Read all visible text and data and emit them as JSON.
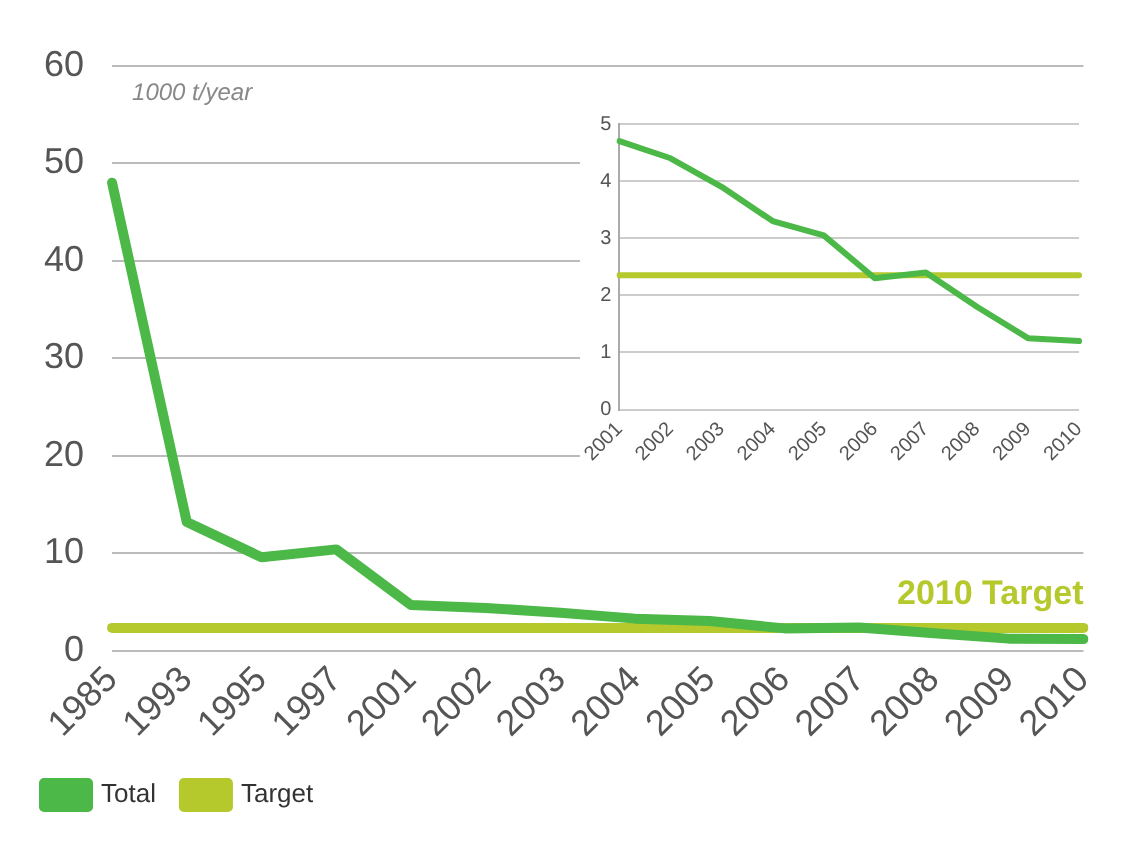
{
  "chart_data": [
    {
      "type": "line",
      "ylabel": "1000 t/year",
      "categories": [
        "1985",
        "1993",
        "1995",
        "1997",
        "2001",
        "2002",
        "2003",
        "2004",
        "2005",
        "2006",
        "2007",
        "2008",
        "2009",
        "2010"
      ],
      "series": [
        {
          "name": "Total",
          "color": "#4cb848",
          "values": [
            48,
            13.2,
            9.6,
            10.4,
            4.7,
            4.4,
            3.9,
            3.3,
            3.05,
            2.3,
            2.4,
            1.8,
            1.25,
            1.2
          ]
        },
        {
          "name": "Target",
          "color": "#b5c92d",
          "values": [
            2.35,
            2.35,
            2.35,
            2.35,
            2.35,
            2.35,
            2.35,
            2.35,
            2.35,
            2.35,
            2.35,
            2.35,
            2.35,
            2.35
          ]
        }
      ],
      "ylim": [
        0,
        60
      ],
      "yticks": [
        0,
        10,
        20,
        30,
        40,
        50,
        60
      ],
      "grid": "y",
      "legend": "bottom left",
      "marker": "none",
      "annotations": [
        {
          "text": "2010 Target",
          "x": "2010",
          "y": 2.35
        }
      ]
    },
    {
      "type": "line",
      "categories": [
        "2001",
        "2002",
        "2003",
        "2004",
        "2005",
        "2006",
        "2007",
        "2008",
        "2009",
        "2010"
      ],
      "series": [
        {
          "color": "#4cb848",
          "values": [
            4.7,
            4.4,
            3.9,
            3.3,
            3.05,
            2.3,
            2.4,
            1.8,
            1.25,
            1.2
          ]
        },
        {
          "color": "#b5c92d",
          "values": [
            2.35,
            2.35,
            2.35,
            2.35,
            2.35,
            2.35,
            2.35,
            2.35,
            2.35,
            2.35
          ]
        }
      ],
      "ylim": [
        0,
        5
      ],
      "yticks": [
        0,
        1,
        2,
        3,
        4,
        5
      ],
      "grid": "y",
      "marker": "none"
    }
  ]
}
